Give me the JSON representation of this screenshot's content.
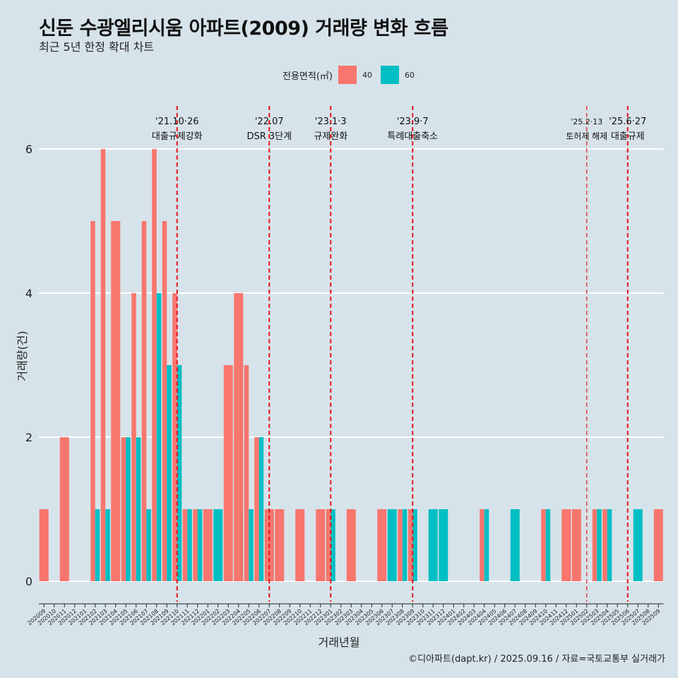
{
  "title": "신둔 수광엘리시움 아파트(2009) 거래량 변화 흐름",
  "subtitle": "최근 5년 한정 확대 차트",
  "caption": "©디아파트(dapt.kr) / 2025.09.16 / 자료=국토교통부 실거래가",
  "colors": {
    "s40": "#F8766D",
    "s60": "#00BFC4",
    "vline": "#e8141c",
    "grid": "#ffffff",
    "bg": "#d7e3ea"
  },
  "chart_data": {
    "type": "bar",
    "xlabel": "거래년월",
    "ylabel": "거래량(건)",
    "ylim": [
      0,
      6
    ],
    "yticks": [
      0,
      2,
      4,
      6
    ],
    "legend": {
      "title": "전용면적(㎡)",
      "placement": "top",
      "entries": [
        "40",
        "60"
      ]
    },
    "categories": [
      "202009",
      "202010",
      "202011",
      "202012",
      "202101",
      "202102",
      "202103",
      "202104",
      "202105",
      "202106",
      "202107",
      "202108",
      "202109",
      "202110",
      "202111",
      "202112",
      "202201",
      "202202",
      "202203",
      "202204",
      "202205",
      "202206",
      "202207",
      "202208",
      "202209",
      "202210",
      "202211",
      "202212",
      "202301",
      "202302",
      "202303",
      "202304",
      "202305",
      "202306",
      "202307",
      "202308",
      "202309",
      "202310",
      "202311",
      "202312",
      "202401",
      "202402",
      "202403",
      "202404",
      "202405",
      "202406",
      "202407",
      "202408",
      "202409",
      "202410",
      "202411",
      "202412",
      "202501",
      "202502",
      "202503",
      "202504",
      "202505",
      "202506",
      "202507",
      "202508",
      "202509"
    ],
    "series": [
      {
        "name": "40",
        "values": [
          1,
          0,
          2,
          0,
          0,
          5,
          6,
          5,
          2,
          4,
          5,
          6,
          5,
          4,
          1,
          1,
          1,
          0,
          3,
          4,
          3,
          2,
          1,
          1,
          0,
          1,
          0,
          1,
          1,
          0,
          1,
          0,
          0,
          1,
          0,
          1,
          1,
          0,
          0,
          0,
          0,
          0,
          0,
          1,
          0,
          0,
          0,
          0,
          0,
          1,
          0,
          1,
          1,
          0,
          1,
          1,
          0,
          0,
          0,
          0,
          1
        ]
      },
      {
        "name": "60",
        "values": [
          0,
          0,
          0,
          0,
          0,
          1,
          1,
          0,
          2,
          2,
          1,
          4,
          3,
          3,
          1,
          1,
          0,
          1,
          0,
          0,
          1,
          2,
          0,
          0,
          0,
          0,
          0,
          0,
          1,
          0,
          0,
          0,
          0,
          0,
          1,
          1,
          1,
          0,
          1,
          1,
          0,
          0,
          0,
          1,
          0,
          0,
          1,
          0,
          0,
          1,
          0,
          0,
          0,
          0,
          1,
          1,
          0,
          0,
          1,
          0,
          0
        ]
      }
    ],
    "annotations": [
      {
        "date_line1": "'21.10·26",
        "date_line2": "대출규제강화",
        "x": 13.5
      },
      {
        "date_line1": "'22.07",
        "date_line2": "DSR 3단계",
        "x": 22.5
      },
      {
        "date_line1": "'23.1·3",
        "date_line2": "규제완화",
        "x": 28.5
      },
      {
        "date_line1": "'23.9·7",
        "date_line2": "특례대출축소",
        "x": 36.5
      },
      {
        "date_line1": "'25.2·13",
        "date_line2": "토허제 해제",
        "x": 53.5
      },
      {
        "date_line1": "'25.6·27",
        "date_line2": "대출규제",
        "x": 57.5
      }
    ]
  }
}
